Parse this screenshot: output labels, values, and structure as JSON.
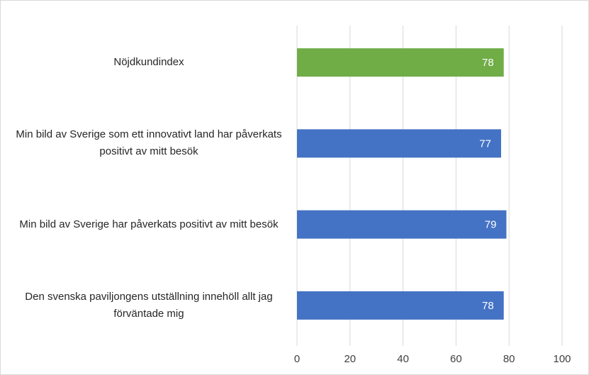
{
  "chart_data": {
    "type": "barh",
    "categories": [
      "Nöjdkundindex",
      "Min bild av Sverige som ett innovativt land har påverkats positivt av mitt besök",
      "Min bild av Sverige har påverkats positivt av mitt besök",
      "Den svenska paviljongens utställning innehöll allt jag förväntade mig"
    ],
    "values": [
      78,
      77,
      79,
      78
    ],
    "colors": [
      "#70ad47",
      "#4472c4",
      "#4472c4",
      "#4472c4"
    ],
    "xlim": [
      0,
      100
    ],
    "xticks": [
      0,
      20,
      40,
      60,
      80,
      100
    ],
    "grid": true
  }
}
